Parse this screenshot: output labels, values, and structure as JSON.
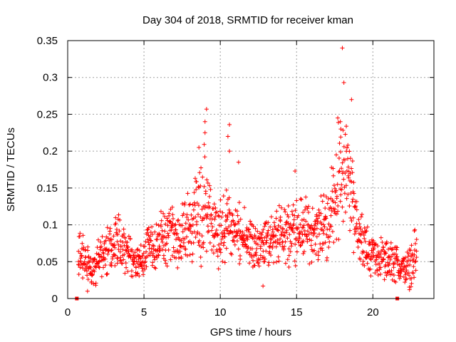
{
  "chart_data": {
    "type": "scatter",
    "title": "Day 304 of 2018, SRMTID for receiver kman",
    "xlabel": "GPS time / hours",
    "ylabel": "SRMTID / TECUs",
    "xlim": [
      0,
      24
    ],
    "ylim": [
      0,
      0.35
    ],
    "xticks": [
      0,
      5,
      10,
      15,
      20
    ],
    "yticks": [
      0,
      0.05,
      0.1,
      0.15,
      0.2,
      0.25,
      0.3,
      0.35
    ],
    "xtick_labels": [
      "0",
      "5",
      "10",
      "15",
      "20"
    ],
    "ytick_labels": [
      "0",
      "0.05",
      "0.1",
      "0.15",
      "0.2",
      "0.25",
      "0.3",
      "0.35"
    ],
    "grid": true,
    "marker": "+",
    "color": "#ff0000",
    "sampling_note": "scatter trend points (approximate), measured every ~0.05 h",
    "trend_x": [
      0.7,
      1.0,
      1.3,
      1.6,
      2.0,
      2.5,
      3.0,
      3.5,
      4.0,
      4.5,
      5.0,
      5.5,
      6.0,
      6.5,
      7.0,
      7.5,
      8.0,
      8.5,
      9.0,
      9.5,
      10.0,
      10.5,
      11.0,
      11.5,
      12.0,
      12.5,
      13.0,
      13.5,
      14.0,
      14.5,
      15.0,
      15.5,
      16.0,
      16.5,
      17.0,
      17.5,
      18.0,
      18.5,
      19.0,
      19.5,
      20.0,
      20.5,
      21.0,
      21.5,
      22.0,
      22.5,
      22.9
    ],
    "trend_y": [
      0.06,
      0.055,
      0.045,
      0.035,
      0.05,
      0.065,
      0.075,
      0.08,
      0.06,
      0.045,
      0.06,
      0.07,
      0.08,
      0.085,
      0.08,
      0.085,
      0.095,
      0.11,
      0.13,
      0.1,
      0.085,
      0.1,
      0.09,
      0.085,
      0.08,
      0.075,
      0.075,
      0.08,
      0.085,
      0.09,
      0.1,
      0.095,
      0.085,
      0.09,
      0.1,
      0.14,
      0.18,
      0.15,
      0.1,
      0.065,
      0.06,
      0.055,
      0.05,
      0.05,
      0.04,
      0.045,
      0.07
    ],
    "spread_y": [
      0.02,
      0.025,
      0.02,
      0.015,
      0.02,
      0.025,
      0.025,
      0.025,
      0.02,
      0.015,
      0.02,
      0.025,
      0.025,
      0.03,
      0.03,
      0.035,
      0.04,
      0.05,
      0.06,
      0.03,
      0.035,
      0.04,
      0.03,
      0.03,
      0.03,
      0.025,
      0.025,
      0.03,
      0.03,
      0.03,
      0.035,
      0.03,
      0.03,
      0.035,
      0.035,
      0.05,
      0.07,
      0.05,
      0.03,
      0.025,
      0.02,
      0.02,
      0.02,
      0.02,
      0.015,
      0.02,
      0.03
    ],
    "outliers": [
      {
        "x": 18.0,
        "y": 0.34
      },
      {
        "x": 18.1,
        "y": 0.293
      },
      {
        "x": 18.6,
        "y": 0.27
      },
      {
        "x": 9.1,
        "y": 0.257
      },
      {
        "x": 9.0,
        "y": 0.24
      },
      {
        "x": 9.0,
        "y": 0.225
      },
      {
        "x": 10.6,
        "y": 0.236
      },
      {
        "x": 10.5,
        "y": 0.22
      },
      {
        "x": 10.6,
        "y": 0.2
      },
      {
        "x": 8.6,
        "y": 0.205
      },
      {
        "x": 17.7,
        "y": 0.245
      },
      {
        "x": 17.9,
        "y": 0.23
      },
      {
        "x": 14.9,
        "y": 0.173
      },
      {
        "x": 11.2,
        "y": 0.185
      },
      {
        "x": 12.8,
        "y": 0.017
      },
      {
        "x": 1.3,
        "y": 0.01
      },
      {
        "x": 22.4,
        "y": 0.012
      }
    ],
    "markers_zero": [
      0.6,
      21.6
    ]
  }
}
